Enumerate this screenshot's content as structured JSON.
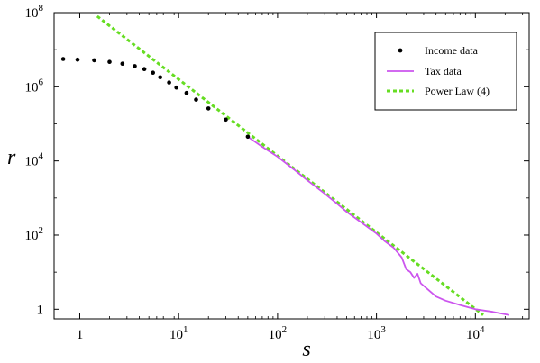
{
  "chart_data": {
    "type": "scatter",
    "xlabel": "s",
    "ylabel": "r",
    "xscale": "log",
    "yscale": "log",
    "xlim": [
      0.55,
      35000
    ],
    "ylim": [
      0.55,
      100000000
    ],
    "x_ticks": [
      {
        "value": 1,
        "label": "1"
      },
      {
        "value": 10,
        "label": "10",
        "sup": "1"
      },
      {
        "value": 100,
        "label": "10",
        "sup": "2"
      },
      {
        "value": 1000,
        "label": "10",
        "sup": "3"
      },
      {
        "value": 10000,
        "label": "10",
        "sup": "4"
      }
    ],
    "y_ticks": [
      {
        "value": 1,
        "label": "1"
      },
      {
        "value": 100,
        "label": "10",
        "sup": "2"
      },
      {
        "value": 10000,
        "label": "10",
        "sup": "4"
      },
      {
        "value": 1000000,
        "label": "10",
        "sup": "6"
      },
      {
        "value": 100000000,
        "label": "10",
        "sup": "8"
      }
    ],
    "legend_position": "top-right",
    "series": [
      {
        "name": "Income data",
        "style": "points",
        "color": "#000000",
        "points": [
          [
            0.68,
            5600000
          ],
          [
            0.95,
            5400000
          ],
          [
            1.4,
            5200000
          ],
          [
            2.0,
            4700000
          ],
          [
            2.7,
            4200000
          ],
          [
            3.6,
            3600000
          ],
          [
            4.5,
            3000000
          ],
          [
            5.5,
            2400000
          ],
          [
            6.5,
            1800000
          ],
          [
            8.0,
            1300000
          ],
          [
            9.5,
            950000
          ],
          [
            12,
            680000
          ],
          [
            15,
            450000
          ],
          [
            20,
            260000
          ],
          [
            30,
            130000
          ],
          [
            50,
            45000
          ]
        ]
      },
      {
        "name": "Tax data",
        "style": "line",
        "color": "#cc55ee",
        "points": [
          [
            50,
            45000
          ],
          [
            70,
            24000
          ],
          [
            100,
            13000
          ],
          [
            150,
            5600
          ],
          [
            200,
            3000
          ],
          [
            300,
            1300
          ],
          [
            400,
            700
          ],
          [
            500,
            420
          ],
          [
            700,
            220
          ],
          [
            1000,
            110
          ],
          [
            1200,
            70
          ],
          [
            1500,
            45
          ],
          [
            1800,
            25
          ],
          [
            2000,
            12
          ],
          [
            2200,
            10
          ],
          [
            2400,
            7
          ],
          [
            2600,
            9
          ],
          [
            2800,
            5
          ],
          [
            3500,
            3
          ],
          [
            4000,
            2.2
          ],
          [
            5000,
            1.7
          ],
          [
            7000,
            1.3
          ],
          [
            10000,
            1.0
          ],
          [
            15000,
            0.85
          ],
          [
            22000,
            0.7
          ]
        ]
      },
      {
        "name": "Power Law (4)",
        "style": "dashed",
        "color": "#66dd22",
        "points": [
          [
            1.5,
            80000000
          ],
          [
            12000,
            0.7
          ]
        ]
      }
    ]
  }
}
